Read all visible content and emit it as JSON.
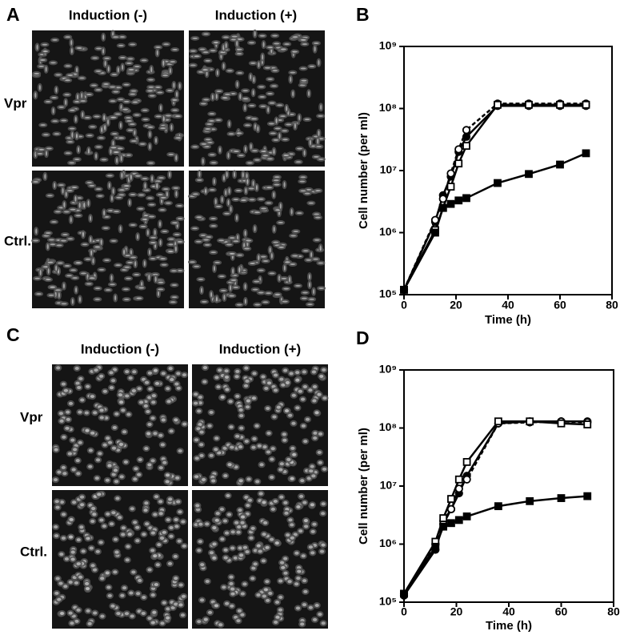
{
  "figure": {
    "panels": [
      {
        "label": "A",
        "columns": [
          "Induction (-)",
          "Induction (+)"
        ],
        "rows": [
          "Vpr",
          "Ctrl."
        ]
      },
      {
        "label": "C",
        "columns": [
          "Induction (-)",
          "Induction (+)"
        ],
        "rows": [
          "Vpr",
          "Ctrl."
        ]
      }
    ]
  },
  "chart_data": [
    {
      "type": "line",
      "label": "B",
      "xlabel": "Time (h)",
      "ylabel": "Cell number (per ml)",
      "log": true,
      "x": [
        0,
        12,
        15,
        18,
        21,
        24,
        36,
        48,
        60,
        70
      ],
      "xlim": [
        0,
        80
      ],
      "xticks": [
        0,
        20,
        40,
        60,
        80
      ],
      "ylim": [
        100000,
        1000000000
      ],
      "yticks": [
        {
          "value": 100000,
          "label": "10⁵"
        },
        {
          "value": 1000000,
          "label": "10⁶"
        },
        {
          "value": 10000000,
          "label": "10⁷"
        },
        {
          "value": 100000000,
          "label": "10⁸"
        },
        {
          "value": 1000000000,
          "label": "10⁹"
        }
      ],
      "series": [
        {
          "color": "#000000",
          "marker": "circle",
          "filled": true,
          "dash": false,
          "values": [
            120000,
            1500000,
            4000000,
            8000000,
            20000000,
            35000000,
            110000000,
            110000000,
            110000000,
            110000000
          ]
        },
        {
          "color": "#000000",
          "marker": "circle",
          "filled": false,
          "dash": true,
          "values": [
            120000,
            1600000,
            3500000,
            9000000,
            22000000,
            45000000,
            120000000,
            120000000,
            120000000,
            120000000
          ]
        },
        {
          "color": "#000000",
          "marker": "square",
          "filled": false,
          "dash": false,
          "values": [
            120000,
            1100000,
            2500000,
            5500000,
            13000000,
            25000000,
            115000000,
            115000000,
            115000000,
            115000000
          ]
        },
        {
          "color": "#000000",
          "marker": "square",
          "filled": true,
          "dash": false,
          "values": [
            120000,
            1000000,
            2500000,
            2900000,
            3300000,
            3600000,
            6300000,
            8800000,
            12500000,
            19000000
          ]
        }
      ]
    },
    {
      "type": "line",
      "label": "D",
      "xlabel": "Time (h)",
      "ylabel": "Cell number (per ml)",
      "log": true,
      "x": [
        0,
        12,
        15,
        18,
        21,
        24,
        36,
        48,
        60,
        70
      ],
      "xlim": [
        0,
        80
      ],
      "xticks": [
        0,
        20,
        40,
        60,
        80
      ],
      "ylim": [
        100000,
        1000000000
      ],
      "yticks": [
        {
          "value": 100000,
          "label": "10⁵"
        },
        {
          "value": 1000000,
          "label": "10⁶"
        },
        {
          "value": 10000000,
          "label": "10⁷"
        },
        {
          "value": 100000000,
          "label": "10⁸"
        },
        {
          "value": 1000000000,
          "label": "10⁹"
        }
      ],
      "series": [
        {
          "color": "#000000",
          "marker": "circle",
          "filled": true,
          "dash": false,
          "values": [
            130000,
            800000,
            2200000,
            4000000,
            7500000,
            15000000,
            120000000,
            130000000,
            130000000,
            130000000
          ]
        },
        {
          "color": "#000000",
          "marker": "circle",
          "filled": false,
          "dash": true,
          "values": [
            140000,
            1000000,
            2500000,
            4000000,
            9000000,
            13000000,
            120000000,
            125000000,
            130000000,
            125000000
          ]
        },
        {
          "color": "#000000",
          "marker": "square",
          "filled": false,
          "dash": false,
          "values": [
            140000,
            1100000,
            2800000,
            6000000,
            13000000,
            26000000,
            130000000,
            130000000,
            120000000,
            115000000
          ]
        },
        {
          "color": "#000000",
          "marker": "square",
          "filled": true,
          "dash": false,
          "values": [
            140000,
            900000,
            2000000,
            2300000,
            2600000,
            3000000,
            4500000,
            5500000,
            6200000,
            6700000
          ]
        }
      ]
    }
  ]
}
